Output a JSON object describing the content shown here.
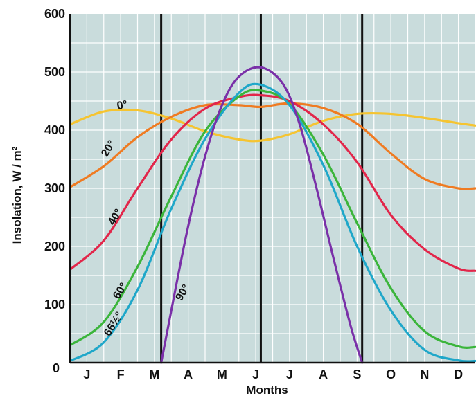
{
  "chart_data": {
    "type": "line",
    "title": "",
    "xlabel": "Months",
    "ylabel": "Insolation, W / m²",
    "ylim": [
      0,
      600
    ],
    "yticks": [
      0,
      100,
      200,
      300,
      400,
      500,
      600
    ],
    "xlim": [
      0,
      12
    ],
    "month_labels": [
      "J",
      "F",
      "M",
      "A",
      "M",
      "J",
      "J",
      "A",
      "S",
      "O",
      "N",
      "D"
    ],
    "month_positions": [
      0.5,
      1.5,
      2.5,
      3.5,
      4.5,
      5.5,
      6.5,
      7.5,
      8.5,
      9.5,
      10.5,
      11.5
    ],
    "grid": true,
    "background_color": "#c9dcdc",
    "major_lines_at": [
      2.7,
      5.65,
      8.65
    ],
    "series": [
      {
        "name": "0°",
        "color": "#f5c431",
        "label_month": 1.55,
        "label_value": 442,
        "x": [
          0,
          1,
          2,
          3,
          4,
          5,
          5.65,
          6.5,
          7.5,
          8.5,
          9.5,
          10.5,
          11.5,
          12
        ],
        "y": [
          410,
          432,
          434,
          420,
          398,
          384,
          382,
          393,
          416,
          428,
          428,
          421,
          412,
          408
        ]
      },
      {
        "name": "20°",
        "color": "#ef7b22",
        "label_month": 1.15,
        "label_value": 368,
        "x": [
          0,
          1,
          2,
          3,
          4,
          5,
          5.65,
          6.5,
          7.5,
          8.5,
          9.5,
          10.5,
          11.5,
          12
        ],
        "y": [
          302,
          338,
          388,
          423,
          443,
          443,
          440,
          446,
          438,
          411,
          360,
          316,
          300,
          300
        ]
      },
      {
        "name": "40°",
        "color": "#e2264a",
        "label_month": 1.35,
        "label_value": 250,
        "x": [
          0,
          1,
          2,
          3,
          4,
          5,
          5.65,
          6.5,
          7.5,
          8.5,
          9.5,
          10.5,
          11.5,
          12
        ],
        "y": [
          160,
          210,
          300,
          384,
          437,
          457,
          460,
          450,
          410,
          345,
          254,
          195,
          162,
          158
        ]
      },
      {
        "name": "60°",
        "color": "#3bb53b",
        "label_month": 1.5,
        "label_value": 123,
        "x": [
          0,
          1,
          2,
          3,
          4,
          5,
          5.65,
          6.5,
          7.5,
          8.5,
          9.5,
          10.5,
          11.5,
          12
        ],
        "y": [
          30,
          70,
          165,
          286,
          398,
          458,
          468,
          445,
          358,
          240,
          128,
          54,
          28,
          27
        ]
      },
      {
        "name": "66½°",
        "color": "#1fa7c9",
        "label_month": 1.3,
        "label_value": 66,
        "x": [
          0,
          1,
          2,
          3,
          4,
          5,
          5.65,
          6.5,
          7.5,
          8.5,
          9.5,
          10.5,
          11.5,
          12
        ],
        "y": [
          3,
          35,
          125,
          265,
          385,
          464,
          478,
          443,
          340,
          200,
          90,
          22,
          4,
          3
        ]
      },
      {
        "name": "90°",
        "color": "#7a30a8",
        "label_month": 3.35,
        "label_value": 120,
        "x": [
          2.7,
          3,
          3.5,
          4,
          4.5,
          5,
          5.65,
          6.3,
          6.8,
          7.3,
          7.8,
          8.3,
          8.65
        ],
        "y": [
          0,
          90,
          235,
          355,
          443,
          492,
          508,
          480,
          410,
          300,
          180,
          65,
          0
        ]
      }
    ]
  }
}
